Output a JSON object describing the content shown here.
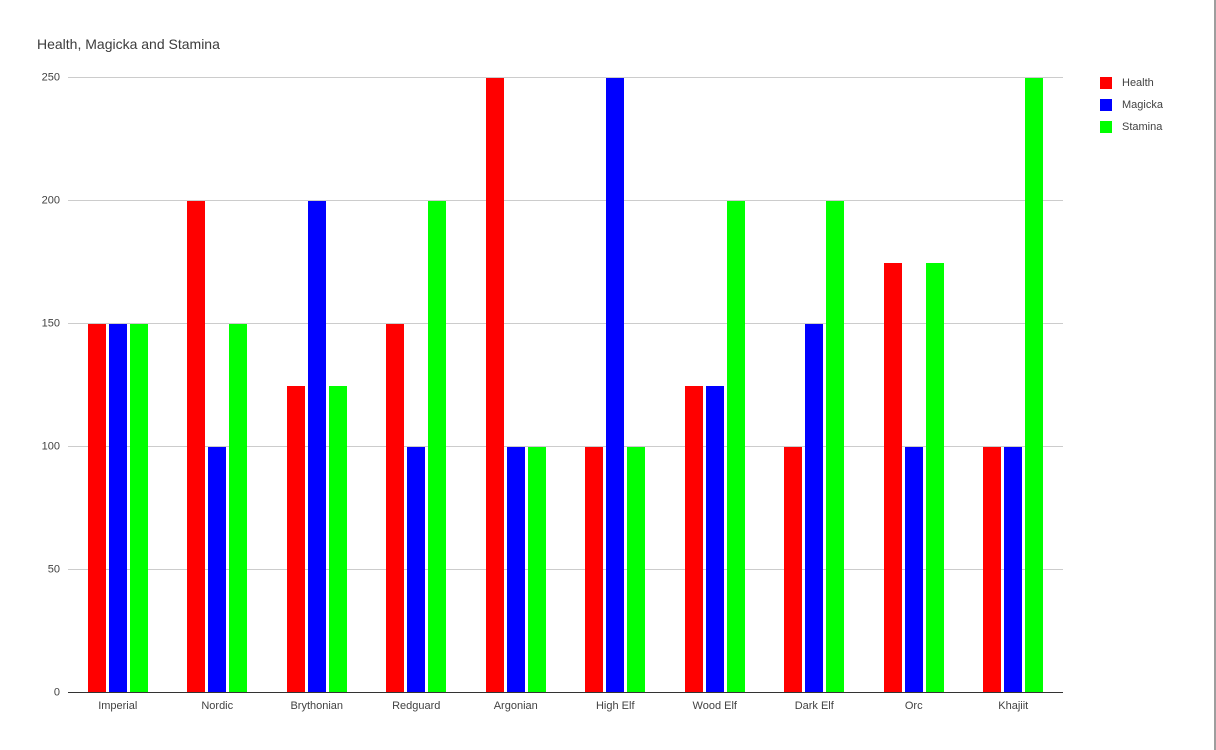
{
  "window": {
    "background": "#ffffff",
    "right_border_color": "#9e9e9e"
  },
  "chart_data": {
    "type": "bar",
    "title": "Health, Magicka and Stamina",
    "categories": [
      "Imperial",
      "Nordic",
      "Brythonian",
      "Redguard",
      "Argonian",
      "High Elf",
      "Wood Elf",
      "Dark Elf",
      "Orc",
      "Khajiit"
    ],
    "series": [
      {
        "name": "Health",
        "color": "#ff0000",
        "values": [
          150,
          200,
          125,
          150,
          250,
          100,
          125,
          100,
          175,
          100
        ]
      },
      {
        "name": "Magicka",
        "color": "#0000ff",
        "values": [
          150,
          100,
          200,
          100,
          100,
          250,
          125,
          150,
          100,
          100
        ]
      },
      {
        "name": "Stamina",
        "color": "#00ff00",
        "values": [
          150,
          150,
          125,
          200,
          100,
          100,
          200,
          200,
          175,
          250
        ]
      }
    ],
    "xlabel": "",
    "ylabel": "",
    "ylim": [
      0,
      250
    ],
    "yticks": [
      0,
      50,
      100,
      150,
      200,
      250
    ],
    "grid": true,
    "legend_position": "right",
    "colors": {
      "gridline": "#cccccc",
      "axis_line": "#333333",
      "tick_label": "#424242",
      "title": "#3c3c3c"
    }
  }
}
